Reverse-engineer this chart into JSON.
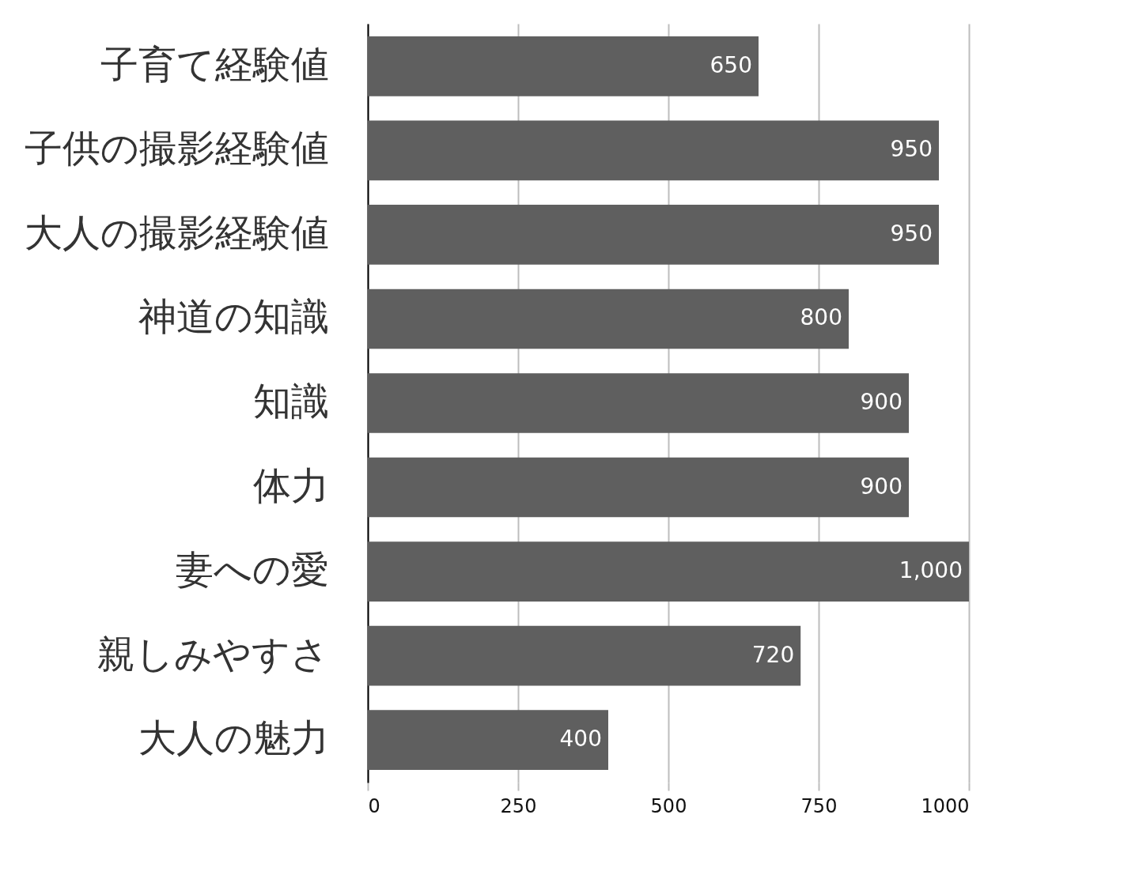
{
  "chart_data": {
    "type": "bar",
    "orientation": "horizontal",
    "categories": [
      "子育て経験値",
      "子供の撮影経験値",
      "大人の撮影経験値",
      "神道の知識",
      "知識",
      "体力",
      "妻への愛",
      "親しみやすさ",
      "大人の魅力"
    ],
    "values": [
      650,
      950,
      950,
      800,
      900,
      900,
      1000,
      720,
      400
    ],
    "value_labels": [
      "650",
      "950",
      "950",
      "800",
      "900",
      "900",
      "1,000",
      "720",
      "400"
    ],
    "color": "#5f5f5f",
    "xlim": [
      0,
      1000
    ],
    "xticks": [
      0,
      250,
      500,
      750,
      1000
    ],
    "grid": "x"
  }
}
